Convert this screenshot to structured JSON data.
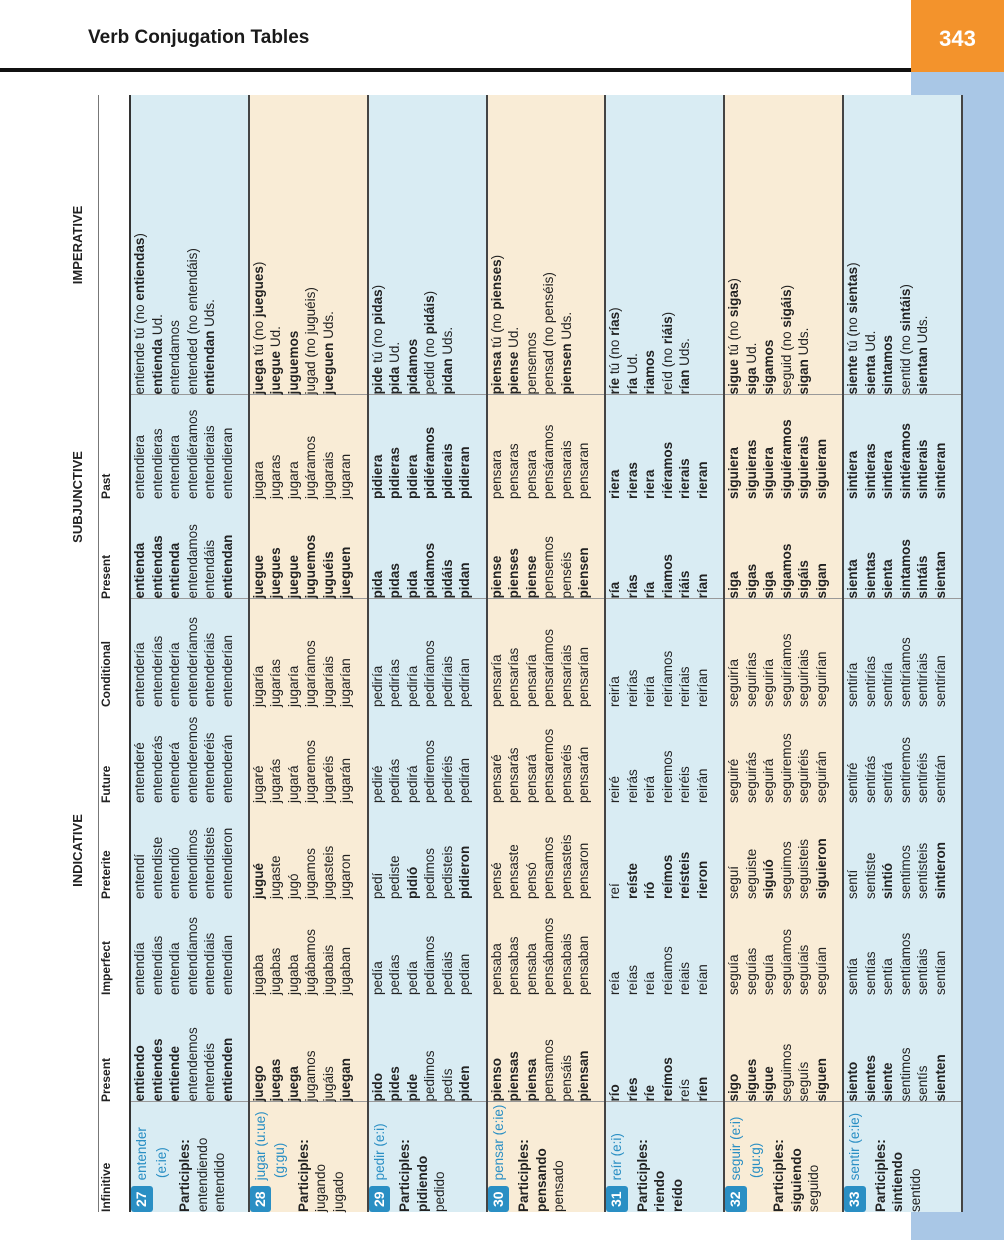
{
  "header": {
    "title": "Verb Conjugation Tables",
    "page": "343"
  },
  "table": {
    "groups": {
      "indicative": "INDICATIVE",
      "subjunctive": "SUBJUNCTIVE",
      "imperative": "IMPERATIVE"
    },
    "columns": {
      "infinitive": "Infinitive",
      "present": "Present",
      "imperfect": "Imperfect",
      "preterite": "Preterite",
      "future": "Future",
      "conditional": "Conditional",
      "subj_present": "Present",
      "subj_past": "Past"
    },
    "rows": [
      {
        "num": "27",
        "inf": "entender",
        "stem": "(e:ie)",
        "plabel": "Participles:",
        "p1": "entendiendo",
        "p2": "entendido",
        "present": [
          "entiendo",
          "entiendes",
          "entiende",
          "entendemos",
          "entendéis",
          "entienden"
        ],
        "imperfect": [
          "entendía",
          "entendías",
          "entendía",
          "entendíamos",
          "entendíais",
          "entendían"
        ],
        "preterite": [
          "entendí",
          "entendiste",
          "entendió",
          "entendimos",
          "entendisteis",
          "entendieron"
        ],
        "future": [
          "entenderé",
          "entenderás",
          "entenderá",
          "entenderemos",
          "entenderéis",
          "entenderán"
        ],
        "conditional": [
          "entendería",
          "entenderías",
          "entendería",
          "entenderíamos",
          "entenderíais",
          "entenderían"
        ],
        "subj_present": [
          "entienda",
          "entiendas",
          "entienda",
          "entendamos",
          "entendáis",
          "entiendan"
        ],
        "subj_past": [
          "entendiera",
          "entendieras",
          "entendiera",
          "entendiéramos",
          "entendierais",
          "entendieran"
        ],
        "imperative": [
          "",
          "entiende tú (no entiendas)",
          "entienda Ud.",
          "entendamos",
          "entended (no entendáis)",
          "entiendan Uds."
        ]
      },
      {
        "num": "28",
        "inf": "jugar (u:ue)",
        "stem": "(g:gu)",
        "plabel": "Participles:",
        "p1": "jugando",
        "p2": "jugado",
        "present": [
          "juego",
          "juegas",
          "juega",
          "jugamos",
          "jugáis",
          "juegan"
        ],
        "imperfect": [
          "jugaba",
          "jugabas",
          "jugaba",
          "jugábamos",
          "jugabais",
          "jugaban"
        ],
        "preterite": [
          "jugué",
          "jugaste",
          "jugó",
          "jugamos",
          "jugasteis",
          "jugaron"
        ],
        "future": [
          "jugaré",
          "jugarás",
          "jugará",
          "jugaremos",
          "jugaréis",
          "jugarán"
        ],
        "conditional": [
          "jugaría",
          "jugarías",
          "jugaría",
          "jugaríamos",
          "jugaríais",
          "jugarían"
        ],
        "subj_present": [
          "juegue",
          "juegues",
          "juegue",
          "juguemos",
          "juguéis",
          "jueguen"
        ],
        "subj_past": [
          "jugara",
          "jugaras",
          "jugara",
          "jugáramos",
          "jugarais",
          "jugaran"
        ],
        "imperative": [
          "",
          "juega tú (no juegues)",
          "juegue Ud.",
          "juguemos",
          "jugad (no juguéis)",
          "jueguen Uds."
        ]
      },
      {
        "num": "29",
        "inf": "pedir (e:i)",
        "stem": "",
        "plabel": "Participles:",
        "p1": "pidiendo",
        "p2": "pedido",
        "present": [
          "pido",
          "pides",
          "pide",
          "pedimos",
          "pedís",
          "piden"
        ],
        "imperfect": [
          "pedía",
          "pedías",
          "pedía",
          "pedíamos",
          "pedíais",
          "pedían"
        ],
        "preterite": [
          "pedí",
          "pediste",
          "pidió",
          "pedimos",
          "pedisteis",
          "pidieron"
        ],
        "future": [
          "pediré",
          "pedirás",
          "pedirá",
          "pediremos",
          "pediréis",
          "pedirán"
        ],
        "conditional": [
          "pediría",
          "pedirías",
          "pediría",
          "pediríamos",
          "pediríais",
          "pedirían"
        ],
        "subj_present": [
          "pida",
          "pidas",
          "pida",
          "pidamos",
          "pidáis",
          "pidan"
        ],
        "subj_past": [
          "pidiera",
          "pidieras",
          "pidiera",
          "pidiéramos",
          "pidierais",
          "pidieran"
        ],
        "imperative": [
          "",
          "pide tú (no pidas)",
          "pida Ud.",
          "pidamos",
          "pedid (no pidáis)",
          "pidan Uds."
        ]
      },
      {
        "num": "30",
        "inf": "pensar (e:ie)",
        "stem": "",
        "plabel": "Participles:",
        "p1": "pensando",
        "p2": "pensado",
        "present": [
          "pienso",
          "piensas",
          "piensa",
          "pensamos",
          "pensáis",
          "piensan"
        ],
        "imperfect": [
          "pensaba",
          "pensabas",
          "pensaba",
          "pensábamos",
          "pensabais",
          "pensaban"
        ],
        "preterite": [
          "pensé",
          "pensaste",
          "pensó",
          "pensamos",
          "pensasteis",
          "pensaron"
        ],
        "future": [
          "pensaré",
          "pensarás",
          "pensará",
          "pensaremos",
          "pensaréis",
          "pensarán"
        ],
        "conditional": [
          "pensaría",
          "pensarías",
          "pensaría",
          "pensaríamos",
          "pensaríais",
          "pensarían"
        ],
        "subj_present": [
          "piense",
          "pienses",
          "piense",
          "pensemos",
          "penséis",
          "piensen"
        ],
        "subj_past": [
          "pensara",
          "pensaras",
          "pensara",
          "pensáramos",
          "pensarais",
          "pensaran"
        ],
        "imperative": [
          "",
          "piensa tú (no pienses)",
          "piense Ud.",
          "pensemos",
          "pensad (no penséis)",
          "piensen Uds."
        ]
      },
      {
        "num": "31",
        "inf": "reír (e:i)",
        "stem": "",
        "plabel": "Participles:",
        "p1": "riendo",
        "p2": "reído",
        "present": [
          "río",
          "ríes",
          "ríe",
          "reímos",
          "reís",
          "ríen"
        ],
        "imperfect": [
          "reía",
          "reías",
          "reía",
          "reíamos",
          "reíais",
          "reían"
        ],
        "preterite": [
          "reí",
          "reíste",
          "rió",
          "reímos",
          "reísteis",
          "rieron"
        ],
        "future": [
          "reiré",
          "reirás",
          "reirá",
          "reiremos",
          "reiréis",
          "reirán"
        ],
        "conditional": [
          "reiría",
          "reirías",
          "reiría",
          "reiríamos",
          "reiríais",
          "reirían"
        ],
        "subj_present": [
          "ría",
          "rías",
          "ría",
          "riamos",
          "riáis",
          "rían"
        ],
        "subj_past": [
          "riera",
          "rieras",
          "riera",
          "riéramos",
          "rierais",
          "rieran"
        ],
        "imperative": [
          "",
          "ríe tú (no rías)",
          "ría Ud.",
          "riamos",
          "reíd (no riáis)",
          "rían Uds."
        ]
      },
      {
        "num": "32",
        "inf": "seguir (e:i)",
        "stem": "(gu:g)",
        "plabel": "Participles:",
        "p1": "siguiendo",
        "p2": "seguido",
        "present": [
          "sigo",
          "sigues",
          "sigue",
          "seguimos",
          "seguís",
          "siguen"
        ],
        "imperfect": [
          "seguía",
          "seguías",
          "seguía",
          "seguíamos",
          "seguíais",
          "seguían"
        ],
        "preterite": [
          "seguí",
          "seguiste",
          "siguió",
          "seguimos",
          "seguisteis",
          "siguieron"
        ],
        "future": [
          "seguiré",
          "seguirás",
          "seguirá",
          "seguiremos",
          "seguiréis",
          "seguirán"
        ],
        "conditional": [
          "seguiría",
          "seguirías",
          "seguiría",
          "seguiríamos",
          "seguiríais",
          "seguirían"
        ],
        "subj_present": [
          "siga",
          "sigas",
          "siga",
          "sigamos",
          "sigáis",
          "sigan"
        ],
        "subj_past": [
          "siguiera",
          "siguieras",
          "siguiera",
          "siguiéramos",
          "siguierais",
          "siguieran"
        ],
        "imperative": [
          "",
          "sigue tú (no sigas)",
          "siga Ud.",
          "sigamos",
          "seguid (no sigáis)",
          "sigan Uds."
        ]
      },
      {
        "num": "33",
        "inf": "sentir (e:ie)",
        "stem": "",
        "plabel": "Participles:",
        "p1": "sintiendo",
        "p2": "sentido",
        "present": [
          "siento",
          "sientes",
          "siente",
          "sentimos",
          "sentís",
          "sienten"
        ],
        "imperfect": [
          "sentía",
          "sentías",
          "sentía",
          "sentíamos",
          "sentíais",
          "sentían"
        ],
        "preterite": [
          "sentí",
          "sentiste",
          "sintió",
          "sentimos",
          "sentisteis",
          "sintieron"
        ],
        "future": [
          "sentiré",
          "sentirás",
          "sentirá",
          "sentiremos",
          "sentiréis",
          "sentirán"
        ],
        "conditional": [
          "sentiría",
          "sentirías",
          "sentiría",
          "sentiríamos",
          "sentiríais",
          "sentirían"
        ],
        "subj_present": [
          "sienta",
          "sientas",
          "sienta",
          "sintamos",
          "sintáis",
          "sientan"
        ],
        "subj_past": [
          "sintiera",
          "sintieras",
          "sintiera",
          "sintiéramos",
          "sintierais",
          "sintieran"
        ],
        "imperative": [
          "",
          "siente tú (no sientas)",
          "sienta Ud.",
          "sintamos",
          "sentid (no sintáis)",
          "sientan Uds."
        ]
      }
    ]
  }
}
